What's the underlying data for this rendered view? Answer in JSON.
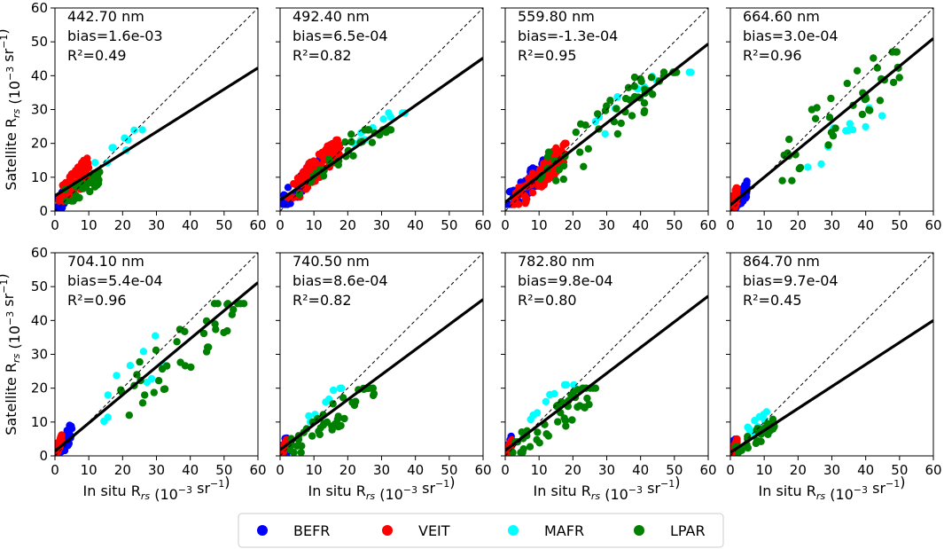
{
  "figure": {
    "ylabel": "Satellite R",
    "ylabel_sub": "rs",
    "ylabel_unit": " (10",
    "ylabel_exp": "−3",
    "ylabel_unit2": " sr",
    "ylabel_exp2": "−1",
    "ylabel_close": ")",
    "xlabel": "In situ R",
    "xlabel_sub": "rs",
    "xlabel_unit": " (10",
    "xlabel_exp": "−3",
    "xlabel_unit2": " sr",
    "xlabel_exp2": "−1",
    "xlabel_close": ")"
  },
  "legend": [
    {
      "label": "BEFR",
      "color": "#0000ff"
    },
    {
      "label": "VEIT",
      "color": "#ff0000"
    },
    {
      "label": "MAFR",
      "color": "#00ffff"
    },
    {
      "label": "LPAR",
      "color": "#008000"
    }
  ],
  "chart_data": [
    {
      "type": "scatter",
      "wavelength": "442.70 nm",
      "bias": "bias=1.6e-03",
      "r2": "R²=0.49",
      "fit": {
        "intercept": 4.5,
        "slope": 0.63
      },
      "xlim": [
        0,
        60
      ],
      "ylim": [
        0,
        60
      ],
      "xticks": [
        "0",
        "10",
        "20",
        "30",
        "40",
        "50",
        "60"
      ],
      "yticks": [
        "0",
        "10",
        "20",
        "30",
        "40",
        "50",
        "60"
      ],
      "clusters": [
        {
          "series": "BEFR",
          "n": 30,
          "x": [
            0.2,
            4
          ],
          "y": [
            0.5,
            12
          ],
          "slope": 1.5
        },
        {
          "series": "VEIT",
          "n": 85,
          "x": [
            1,
            10
          ],
          "y": [
            3,
            20
          ],
          "slope": 1.1
        },
        {
          "series": "MAFR",
          "n": 9,
          "x": [
            11,
            27
          ],
          "y": [
            13,
            24
          ],
          "slope": 0.7
        },
        {
          "series": "LPAR",
          "n": 26,
          "x": [
            2,
            15
          ],
          "y": [
            3,
            16
          ],
          "slope": 0.6
        }
      ]
    },
    {
      "type": "scatter",
      "wavelength": "492.40 nm",
      "bias": "bias=6.5e-04",
      "r2": "R²=0.82",
      "fit": {
        "intercept": 3.2,
        "slope": 0.7
      },
      "xlim": [
        0,
        60
      ],
      "ylim": [
        0,
        60
      ],
      "xticks": [
        "0",
        "10",
        "20",
        "30",
        "40",
        "50",
        "60"
      ],
      "yticks": [
        "0",
        "10",
        "20",
        "30",
        "40",
        "50",
        "60"
      ],
      "clusters": [
        {
          "series": "BEFR",
          "n": 40,
          "x": [
            0.5,
            12
          ],
          "y": [
            2,
            16
          ],
          "slope": 1.1
        },
        {
          "series": "VEIT",
          "n": 90,
          "x": [
            2,
            18
          ],
          "y": [
            4,
            21
          ],
          "slope": 1.0
        },
        {
          "series": "MAFR",
          "n": 10,
          "x": [
            16,
            38
          ],
          "y": [
            16,
            29
          ],
          "slope": 0.8
        },
        {
          "series": "LPAR",
          "n": 40,
          "x": [
            5,
            33
          ],
          "y": [
            5,
            24
          ],
          "slope": 0.85
        }
      ]
    },
    {
      "type": "scatter",
      "wavelength": "559.80 nm",
      "bias": "bias=-1.3e-04",
      "r2": "R²=0.95",
      "fit": {
        "intercept": 2.6,
        "slope": 0.78
      },
      "xlim": [
        0,
        60
      ],
      "ylim": [
        0,
        60
      ],
      "xticks": [
        "0",
        "10",
        "20",
        "30",
        "40",
        "50",
        "60"
      ],
      "yticks": [
        "0",
        "10",
        "20",
        "30",
        "40",
        "50",
        "60"
      ],
      "clusters": [
        {
          "series": "BEFR",
          "n": 45,
          "x": [
            0.5,
            12
          ],
          "y": [
            2,
            18
          ],
          "slope": 1.0
        },
        {
          "series": "VEIT",
          "n": 90,
          "x": [
            2,
            18
          ],
          "y": [
            2,
            20
          ],
          "slope": 1.0
        },
        {
          "series": "MAFR",
          "n": 12,
          "x": [
            24,
            56
          ],
          "y": [
            22,
            41
          ],
          "slope": 0.85
        },
        {
          "series": "LPAR",
          "n": 55,
          "x": [
            10,
            53
          ],
          "y": [
            9,
            41
          ],
          "slope": 0.85
        }
      ]
    },
    {
      "type": "scatter",
      "wavelength": "664.60 nm",
      "bias": "bias=3.0e-04",
      "r2": "R²=0.96",
      "fit": {
        "intercept": 1.8,
        "slope": 0.82
      },
      "xlim": [
        0,
        60
      ],
      "ylim": [
        0,
        60
      ],
      "xticks": [
        "0",
        "10",
        "20",
        "30",
        "40",
        "50",
        "60"
      ],
      "yticks": [
        "0",
        "10",
        "20",
        "30",
        "40",
        "50",
        "60"
      ],
      "clusters": [
        {
          "series": "BEFR",
          "n": 30,
          "x": [
            0.2,
            5
          ],
          "y": [
            0.5,
            12
          ],
          "slope": 1.3
        },
        {
          "series": "VEIT",
          "n": 70,
          "x": [
            0.3,
            2
          ],
          "y": [
            1,
            12
          ],
          "slope": 2.5
        },
        {
          "series": "MAFR",
          "n": 12,
          "x": [
            22,
            48
          ],
          "y": [
            13,
            40
          ],
          "slope": 0.9
        },
        {
          "series": "LPAR",
          "n": 40,
          "x": [
            10,
            50
          ],
          "y": [
            9,
            47
          ],
          "slope": 0.9
        }
      ]
    },
    {
      "type": "scatter",
      "wavelength": "704.10 nm",
      "bias": "bias=5.4e-04",
      "r2": "R²=0.96",
      "fit": {
        "intercept": 1.4,
        "slope": 0.83
      },
      "xlim": [
        0,
        60
      ],
      "ylim": [
        0,
        60
      ],
      "xticks": [
        "0",
        "10",
        "20",
        "30",
        "40",
        "50",
        "60"
      ],
      "yticks": [
        "0",
        "10",
        "20",
        "30",
        "40",
        "50",
        "60"
      ],
      "clusters": [
        {
          "series": "BEFR",
          "n": 30,
          "x": [
            0.2,
            5
          ],
          "y": [
            0.5,
            14
          ],
          "slope": 1.5
        },
        {
          "series": "VEIT",
          "n": 70,
          "x": [
            0.3,
            2
          ],
          "y": [
            1,
            7
          ],
          "slope": 2.5
        },
        {
          "series": "MAFR",
          "n": 10,
          "x": [
            10,
            33
          ],
          "y": [
            10,
            37
          ],
          "slope": 1.0
        },
        {
          "series": "LPAR",
          "n": 40,
          "x": [
            15,
            57
          ],
          "y": [
            12,
            45
          ],
          "slope": 0.85
        }
      ]
    },
    {
      "type": "scatter",
      "wavelength": "740.50 nm",
      "bias": "bias=8.6e-04",
      "r2": "R²=0.82",
      "fit": {
        "intercept": 1.8,
        "slope": 0.74
      },
      "xlim": [
        0,
        60
      ],
      "ylim": [
        0,
        60
      ],
      "xticks": [
        "0",
        "10",
        "20",
        "30",
        "40",
        "50",
        "60"
      ],
      "yticks": [
        "0",
        "10",
        "20",
        "30",
        "40",
        "50",
        "60"
      ],
      "clusters": [
        {
          "series": "BEFR",
          "n": 20,
          "x": [
            0.2,
            2
          ],
          "y": [
            0.5,
            15
          ],
          "slope": 1.5
        },
        {
          "series": "VEIT",
          "n": 60,
          "x": [
            0.2,
            2
          ],
          "y": [
            0.5,
            5
          ],
          "slope": 2.0
        },
        {
          "series": "MAFR",
          "n": 10,
          "x": [
            6,
            20
          ],
          "y": [
            8,
            20
          ],
          "slope": 1.0
        },
        {
          "series": "LPAR",
          "n": 45,
          "x": [
            2,
            28
          ],
          "y": [
            1,
            20
          ],
          "slope": 0.75
        }
      ]
    },
    {
      "type": "scatter",
      "wavelength": "782.80 nm",
      "bias": "bias=9.8e-04",
      "r2": "R²=0.80",
      "fit": {
        "intercept": 1.6,
        "slope": 0.76
      },
      "xlim": [
        0,
        60
      ],
      "ylim": [
        0,
        60
      ],
      "xticks": [
        "0",
        "10",
        "20",
        "30",
        "40",
        "50",
        "60"
      ],
      "yticks": [
        "0",
        "10",
        "20",
        "30",
        "40",
        "50",
        "60"
      ],
      "clusters": [
        {
          "series": "BEFR",
          "n": 20,
          "x": [
            0.2,
            2
          ],
          "y": [
            0.5,
            15
          ],
          "slope": 1.5
        },
        {
          "series": "VEIT",
          "n": 60,
          "x": [
            0.2,
            2
          ],
          "y": [
            0.5,
            5
          ],
          "slope": 2.0
        },
        {
          "series": "MAFR",
          "n": 10,
          "x": [
            6,
            21
          ],
          "y": [
            9,
            21
          ],
          "slope": 1.0
        },
        {
          "series": "LPAR",
          "n": 45,
          "x": [
            2,
            27
          ],
          "y": [
            1,
            20
          ],
          "slope": 0.75
        }
      ]
    },
    {
      "type": "scatter",
      "wavelength": "864.70 nm",
      "bias": "bias=9.7e-04",
      "r2": "R²=0.45",
      "fit": {
        "intercept": 1.0,
        "slope": 0.65
      },
      "xlim": [
        0,
        60
      ],
      "ylim": [
        0,
        60
      ],
      "xticks": [
        "0",
        "10",
        "20",
        "30",
        "40",
        "50",
        "60"
      ],
      "yticks": [
        "0",
        "10",
        "20",
        "30",
        "40",
        "50",
        "60"
      ],
      "clusters": [
        {
          "series": "BEFR",
          "n": 20,
          "x": [
            0.2,
            2
          ],
          "y": [
            0.5,
            16
          ],
          "slope": 1.5
        },
        {
          "series": "VEIT",
          "n": 60,
          "x": [
            0.2,
            2
          ],
          "y": [
            0.5,
            5
          ],
          "slope": 2.0
        },
        {
          "series": "MAFR",
          "n": 10,
          "x": [
            3,
            12
          ],
          "y": [
            4,
            15
          ],
          "slope": 1.0
        },
        {
          "series": "LPAR",
          "n": 40,
          "x": [
            1,
            13
          ],
          "y": [
            0.5,
            11
          ],
          "slope": 0.75
        }
      ]
    }
  ]
}
